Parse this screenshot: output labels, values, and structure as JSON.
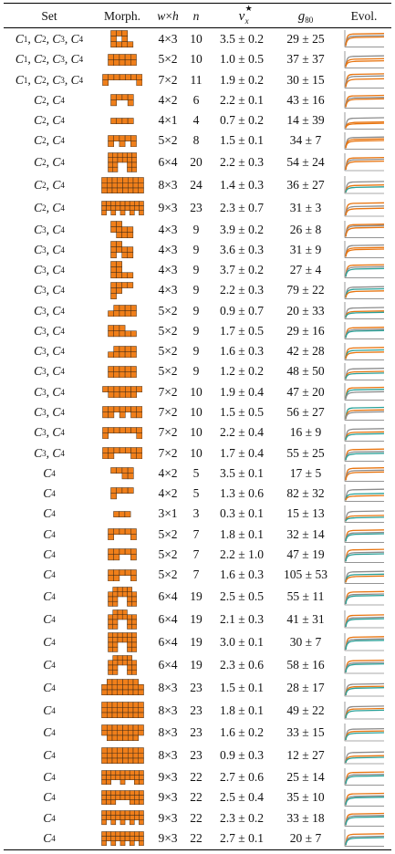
{
  "header": {
    "set": "Set",
    "morph": "Morph.",
    "wh_w": "w",
    "wh_x": "×",
    "wh_h": "h",
    "n": "n",
    "v_base": "v",
    "v_sup": "★",
    "v_sub": "x",
    "g_base": "g",
    "g_sub": "80",
    "evol": "Evol."
  },
  "colors": {
    "cell": "#f07f1a",
    "grid": "#3b2a1a",
    "curve_gray": "#8c8c8c",
    "curve_orange": "#e8740f",
    "curve_teal": "#2aa198"
  },
  "rows": [
    {
      "set": "C1, C2, C3, C4",
      "wh": "4×3",
      "n": "10",
      "v": "3.5 ± 0.2",
      "g": "29 ± 25"
    },
    {
      "set": "C1, C2, C3, C4",
      "wh": "5×2",
      "n": "10",
      "v": "1.0 ± 0.5",
      "g": "37 ± 37"
    },
    {
      "set": "C1, C2, C3, C4",
      "wh": "7×2",
      "n": "11",
      "v": "1.9 ± 0.2",
      "g": "30 ± 15"
    },
    {
      "set": "C2, C4",
      "wh": "4×2",
      "n": "6",
      "v": "2.2 ± 0.1",
      "g": "43 ± 16"
    },
    {
      "set": "C2, C4",
      "wh": "4×1",
      "n": "4",
      "v": "0.7 ± 0.2",
      "g": "14 ± 39"
    },
    {
      "set": "C2, C4",
      "wh": "5×2",
      "n": "8",
      "v": "1.5 ± 0.1",
      "g": "34 ± 7"
    },
    {
      "set": "C2, C4",
      "wh": "6×4",
      "n": "20",
      "v": "2.2 ± 0.3",
      "g": "54 ± 24"
    },
    {
      "set": "C2, C4",
      "wh": "8×3",
      "n": "24",
      "v": "1.4 ± 0.3",
      "g": "36 ± 27"
    },
    {
      "set": "C2, C4",
      "wh": "9×3",
      "n": "23",
      "v": "2.3 ± 0.7",
      "g": "31 ± 3"
    },
    {
      "set": "C3, C4",
      "wh": "4×3",
      "n": "9",
      "v": "3.9 ± 0.2",
      "g": "26 ± 8"
    },
    {
      "set": "C3, C4",
      "wh": "4×3",
      "n": "9",
      "v": "3.6 ± 0.3",
      "g": "31 ± 9"
    },
    {
      "set": "C3, C4",
      "wh": "4×3",
      "n": "9",
      "v": "3.7 ± 0.2",
      "g": "27 ± 4"
    },
    {
      "set": "C3, C4",
      "wh": "4×3",
      "n": "9",
      "v": "2.2 ± 0.3",
      "g": "79 ± 22"
    },
    {
      "set": "C3, C4",
      "wh": "5×2",
      "n": "9",
      "v": "0.9 ± 0.7",
      "g": "20 ± 33"
    },
    {
      "set": "C3, C4",
      "wh": "5×2",
      "n": "9",
      "v": "1.7 ± 0.5",
      "g": "29 ± 16"
    },
    {
      "set": "C3, C4",
      "wh": "5×2",
      "n": "9",
      "v": "1.6 ± 0.3",
      "g": "42 ± 28"
    },
    {
      "set": "C3, C4",
      "wh": "5×2",
      "n": "9",
      "v": "1.2 ± 0.2",
      "g": "48 ± 50"
    },
    {
      "set": "C3, C4",
      "wh": "7×2",
      "n": "10",
      "v": "1.9 ± 0.4",
      "g": "47 ± 20"
    },
    {
      "set": "C3, C4",
      "wh": "7×2",
      "n": "10",
      "v": "1.5 ± 0.5",
      "g": "56 ± 27"
    },
    {
      "set": "C3, C4",
      "wh": "7×2",
      "n": "10",
      "v": "2.2 ± 0.4",
      "g": "16 ± 9"
    },
    {
      "set": "C3, C4",
      "wh": "7×2",
      "n": "10",
      "v": "1.7 ± 0.4",
      "g": "55 ± 25"
    },
    {
      "set": "C4",
      "wh": "4×2",
      "n": "5",
      "v": "3.5 ± 0.1",
      "g": "17 ± 5"
    },
    {
      "set": "C4",
      "wh": "4×2",
      "n": "5",
      "v": "1.3 ± 0.6",
      "g": "82 ± 32"
    },
    {
      "set": "C4",
      "wh": "3×1",
      "n": "3",
      "v": "0.3 ± 0.1",
      "g": "15 ± 13"
    },
    {
      "set": "C4",
      "wh": "5×2",
      "n": "7",
      "v": "1.8 ± 0.1",
      "g": "32 ± 14"
    },
    {
      "set": "C4",
      "wh": "5×2",
      "n": "7",
      "v": "2.2 ± 1.0",
      "g": "47 ± 19"
    },
    {
      "set": "C4",
      "wh": "5×2",
      "n": "7",
      "v": "1.6 ± 0.3",
      "g": "105 ± 53"
    },
    {
      "set": "C4",
      "wh": "6×4",
      "n": "19",
      "v": "2.5 ± 0.5",
      "g": "55 ± 11"
    },
    {
      "set": "C4",
      "wh": "6×4",
      "n": "19",
      "v": "2.1 ± 0.3",
      "g": "41 ± 31"
    },
    {
      "set": "C4",
      "wh": "6×4",
      "n": "19",
      "v": "3.0 ± 0.1",
      "g": "30 ± 7"
    },
    {
      "set": "C4",
      "wh": "6×4",
      "n": "19",
      "v": "2.3 ± 0.6",
      "g": "58 ± 16"
    },
    {
      "set": "C4",
      "wh": "8×3",
      "n": "23",
      "v": "1.5 ± 0.1",
      "g": "28 ± 17"
    },
    {
      "set": "C4",
      "wh": "8×3",
      "n": "23",
      "v": "1.8 ± 0.1",
      "g": "49 ± 22"
    },
    {
      "set": "C4",
      "wh": "8×3",
      "n": "23",
      "v": "1.6 ± 0.2",
      "g": "33 ± 15"
    },
    {
      "set": "C4",
      "wh": "8×3",
      "n": "23",
      "v": "0.9 ± 0.3",
      "g": "12 ± 27"
    },
    {
      "set": "C4",
      "wh": "9×3",
      "n": "22",
      "v": "2.7 ± 0.6",
      "g": "25 ± 14"
    },
    {
      "set": "C4",
      "wh": "9×3",
      "n": "22",
      "v": "2.5 ± 0.4",
      "g": "35 ± 10"
    },
    {
      "set": "C4",
      "wh": "9×3",
      "n": "22",
      "v": "2.3 ± 0.2",
      "g": "33 ± 18"
    },
    {
      "set": "C4",
      "wh": "9×3",
      "n": "22",
      "v": "2.7 ± 0.1",
      "g": "20 ± 7"
    }
  ]
}
